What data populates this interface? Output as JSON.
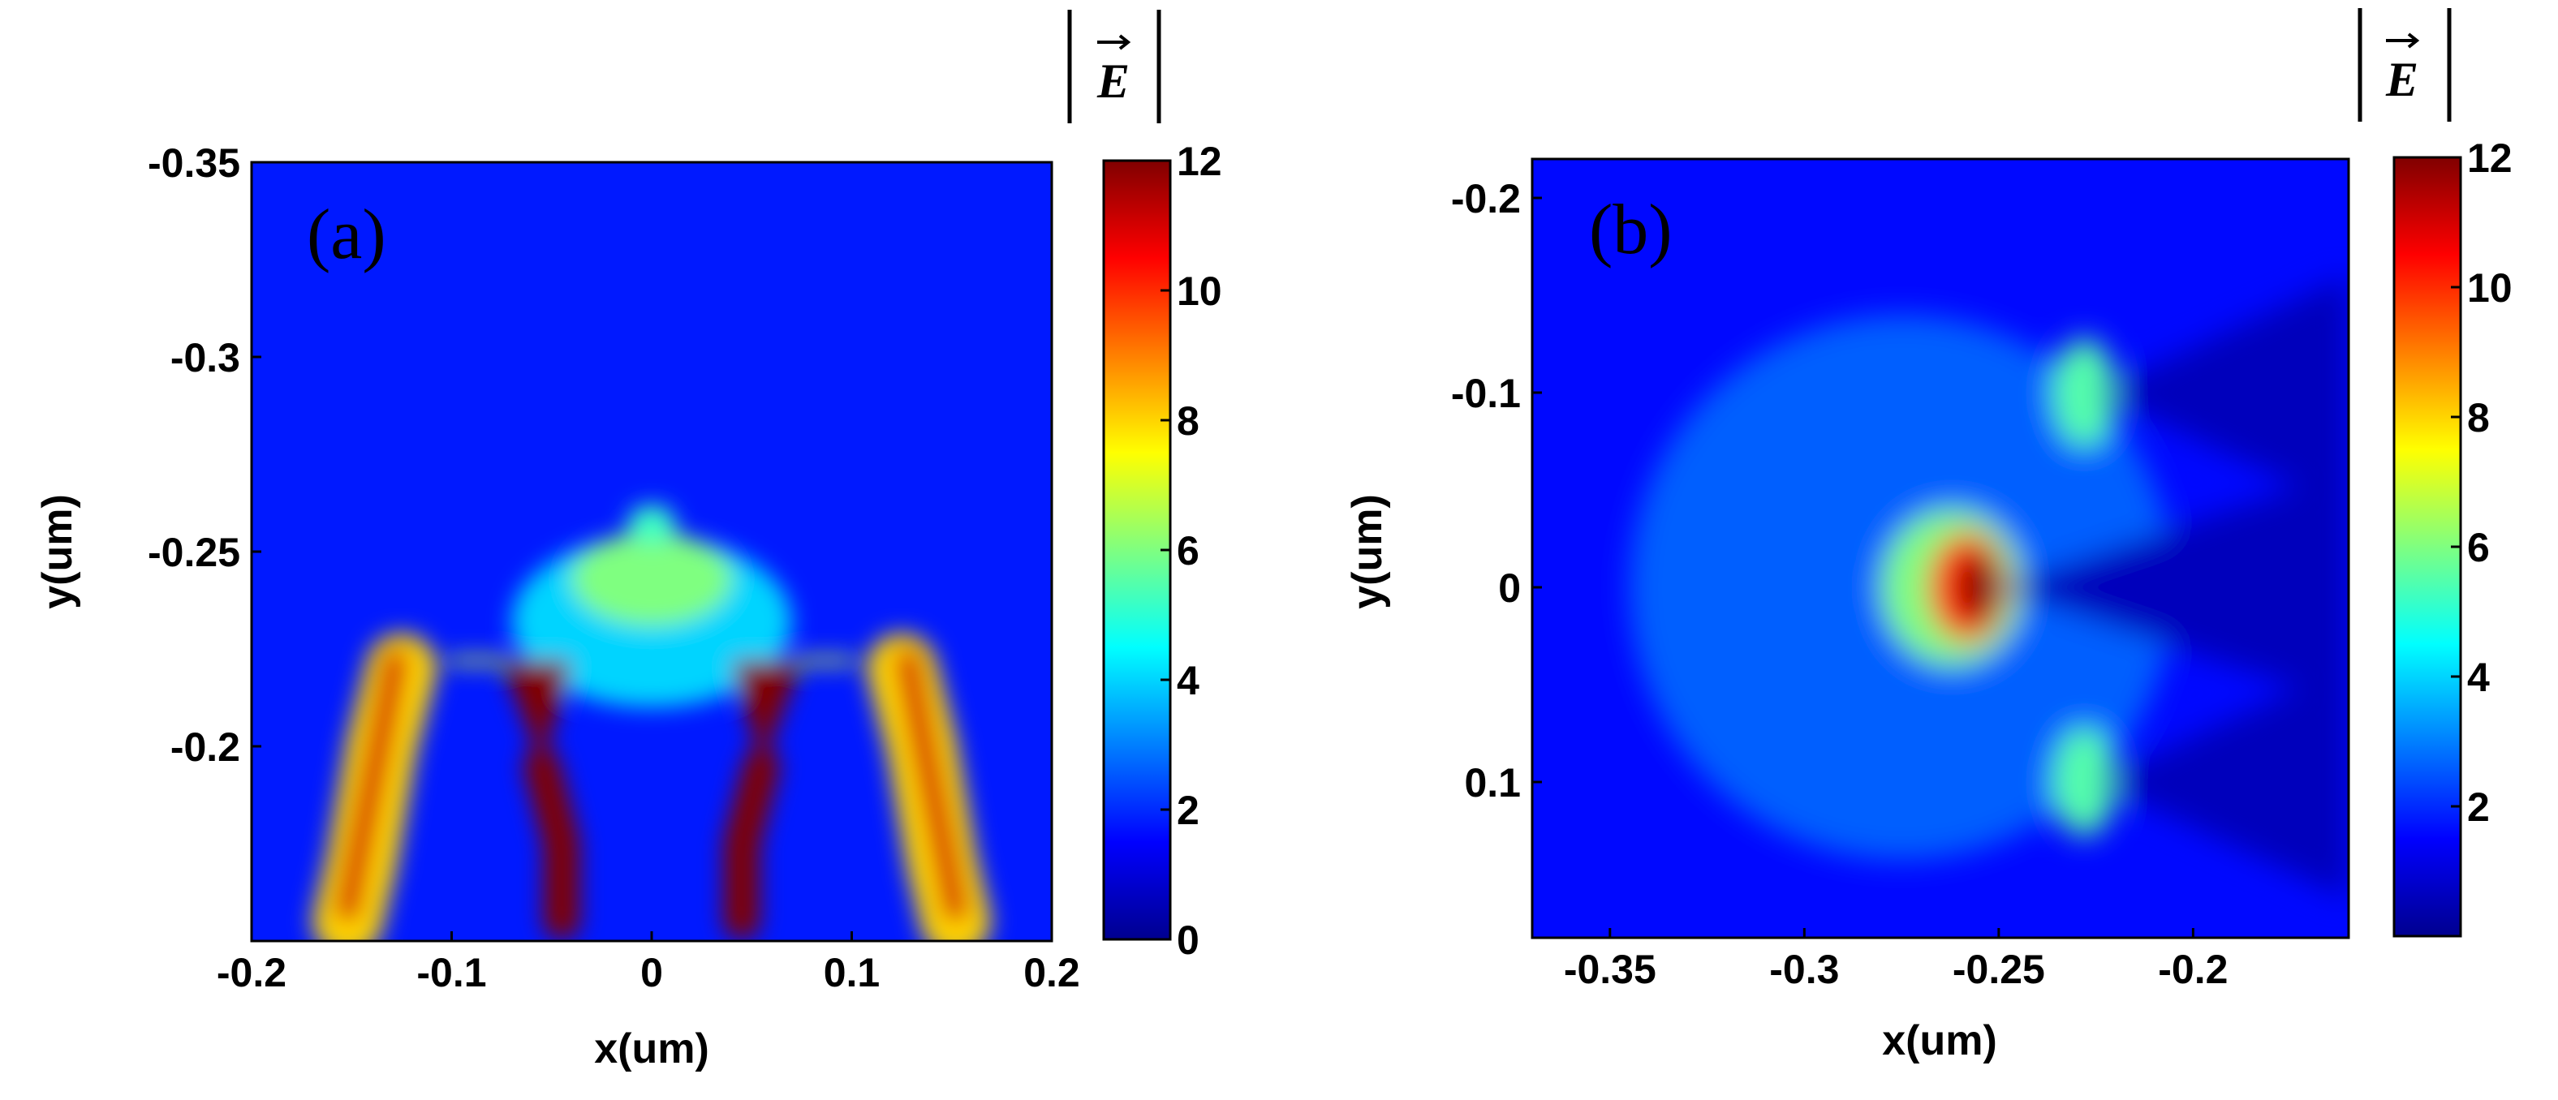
{
  "chart_data": [
    {
      "type": "heatmap",
      "panel_label": "(a)",
      "xlabel": "x(um)",
      "ylabel": "y(um)",
      "xlim": [
        -0.2,
        0.2
      ],
      "ylim": [
        -0.35,
        -0.15
      ],
      "y_reversed": true,
      "xticks": [
        -0.2,
        -0.1,
        0,
        0.1,
        0.2
      ],
      "xtick_labels": [
        "-0.2",
        "-0.1",
        "0",
        "0.1",
        "0.2"
      ],
      "yticks": [
        -0.35,
        -0.3,
        -0.25,
        -0.2
      ],
      "ytick_labels": [
        "-0.35",
        "-0.3",
        "-0.25",
        "-0.2"
      ],
      "colorbar": {
        "title": "|E|",
        "colormap": "jet",
        "range": [
          0,
          12
        ],
        "ticks": [
          0,
          2,
          4,
          6,
          8,
          10,
          12
        ],
        "tick_labels": [
          "0",
          "2",
          "4",
          "6",
          "8",
          "10",
          "12"
        ]
      },
      "background_value": 1.8,
      "field_features": [
        {
          "shape": "disk",
          "x": 0,
          "y": -0.232,
          "rx": 0.07,
          "ry": 0.022,
          "value": 4.0
        },
        {
          "shape": "disk",
          "x": 0,
          "y": -0.243,
          "rx": 0.04,
          "ry": 0.012,
          "value": 6.0
        },
        {
          "shape": "disk",
          "x": 0,
          "y": -0.257,
          "rx": 0.012,
          "ry": 0.005,
          "value": 5.2
        },
        {
          "shape": "band",
          "points": [
            [
              -0.125,
              -0.22
            ],
            [
              -0.135,
              -0.2
            ],
            [
              -0.145,
              -0.17
            ],
            [
              -0.152,
              -0.155
            ]
          ],
          "width": 0.035,
          "value": 8.0
        },
        {
          "shape": "band",
          "points": [
            [
              0.125,
              -0.22
            ],
            [
              0.135,
              -0.2
            ],
            [
              0.145,
              -0.17
            ],
            [
              0.152,
              -0.155
            ]
          ],
          "width": 0.035,
          "value": 8.0
        },
        {
          "shape": "band",
          "points": [
            [
              -0.128,
              -0.222
            ],
            [
              -0.14,
              -0.19
            ],
            [
              -0.152,
              -0.158
            ]
          ],
          "width": 0.012,
          "value": 11.0
        },
        {
          "shape": "band",
          "points": [
            [
              0.128,
              -0.222
            ],
            [
              0.14,
              -0.19
            ],
            [
              0.152,
              -0.158
            ]
          ],
          "width": 0.012,
          "value": 11.0
        },
        {
          "shape": "polygon",
          "points": [
            [
              -0.075,
              -0.222
            ],
            [
              -0.04,
              -0.222
            ],
            [
              -0.055,
              -0.195
            ]
          ],
          "value": 12.0
        },
        {
          "shape": "polygon",
          "points": [
            [
              0.075,
              -0.222
            ],
            [
              0.04,
              -0.222
            ],
            [
              0.055,
              -0.195
            ]
          ],
          "value": 12.0
        },
        {
          "shape": "band",
          "points": [
            [
              -0.055,
              -0.195
            ],
            [
              -0.045,
              -0.175
            ],
            [
              -0.045,
              -0.155
            ]
          ],
          "width": 0.018,
          "value": 12.0
        },
        {
          "shape": "band",
          "points": [
            [
              0.055,
              -0.195
            ],
            [
              0.045,
              -0.175
            ],
            [
              0.045,
              -0.155
            ]
          ],
          "width": 0.018,
          "value": 12.0
        },
        {
          "shape": "band",
          "points": [
            [
              -0.1,
              -0.222
            ],
            [
              -0.075,
              -0.222
            ]
          ],
          "width": 0.004,
          "value": 7.0
        },
        {
          "shape": "band",
          "points": [
            [
              0.1,
              -0.222
            ],
            [
              0.075,
              -0.222
            ]
          ],
          "width": 0.004,
          "value": 7.0
        }
      ]
    },
    {
      "type": "heatmap",
      "panel_label": "(b)",
      "xlabel": "x(um)",
      "ylabel": "y(um)",
      "xlim": [
        -0.37,
        -0.16
      ],
      "ylim": [
        -0.22,
        0.18
      ],
      "y_reversed": true,
      "xticks": [
        -0.35,
        -0.3,
        -0.25,
        -0.2
      ],
      "xtick_labels": [
        "-0.35",
        "-0.3",
        "-0.25",
        "-0.2"
      ],
      "yticks": [
        -0.2,
        -0.1,
        0,
        0.1
      ],
      "ytick_labels": [
        "-0.2",
        "-0.1",
        "0",
        "0.1"
      ],
      "colorbar": {
        "title": "|E|",
        "colormap": "jet",
        "range": [
          0,
          12
        ],
        "ticks": [
          2,
          4,
          6,
          8,
          10,
          12
        ],
        "tick_labels": [
          "2",
          "4",
          "6",
          "8",
          "10",
          "12"
        ]
      },
      "background_value": 1.6,
      "field_features": [
        {
          "shape": "disk",
          "x": -0.275,
          "y": 0,
          "rx": 0.07,
          "ry": 0.14,
          "value": 2.6
        },
        {
          "shape": "disk",
          "x": -0.262,
          "y": 0,
          "rx": 0.018,
          "ry": 0.04,
          "value": 6.0
        },
        {
          "shape": "disk",
          "x": -0.258,
          "y": 0,
          "rx": 0.01,
          "ry": 0.028,
          "value": 10.0
        },
        {
          "shape": "disk",
          "x": -0.255,
          "y": 0,
          "rx": 0.005,
          "ry": 0.018,
          "value": 12.0
        },
        {
          "shape": "disk",
          "x": -0.228,
          "y": -0.1,
          "rx": 0.008,
          "ry": 0.028,
          "value": 5.5
        },
        {
          "shape": "disk",
          "x": -0.228,
          "y": 0.1,
          "rx": 0.008,
          "ry": 0.028,
          "value": 5.5
        },
        {
          "shape": "wedge",
          "apex": [
            -0.25,
            0
          ],
          "points": [
            [
              -0.16,
              -0.06
            ],
            [
              -0.16,
              0.06
            ]
          ],
          "value": 0.6
        },
        {
          "shape": "wedge",
          "apex": [
            -0.225,
            -0.1
          ],
          "points": [
            [
              -0.16,
              -0.16
            ],
            [
              -0.16,
              -0.04
            ]
          ],
          "value": 0.6
        },
        {
          "shape": "wedge",
          "apex": [
            -0.225,
            0.1
          ],
          "points": [
            [
              -0.16,
              0.04
            ],
            [
              -0.16,
              0.16
            ]
          ],
          "value": 0.6
        }
      ]
    }
  ]
}
